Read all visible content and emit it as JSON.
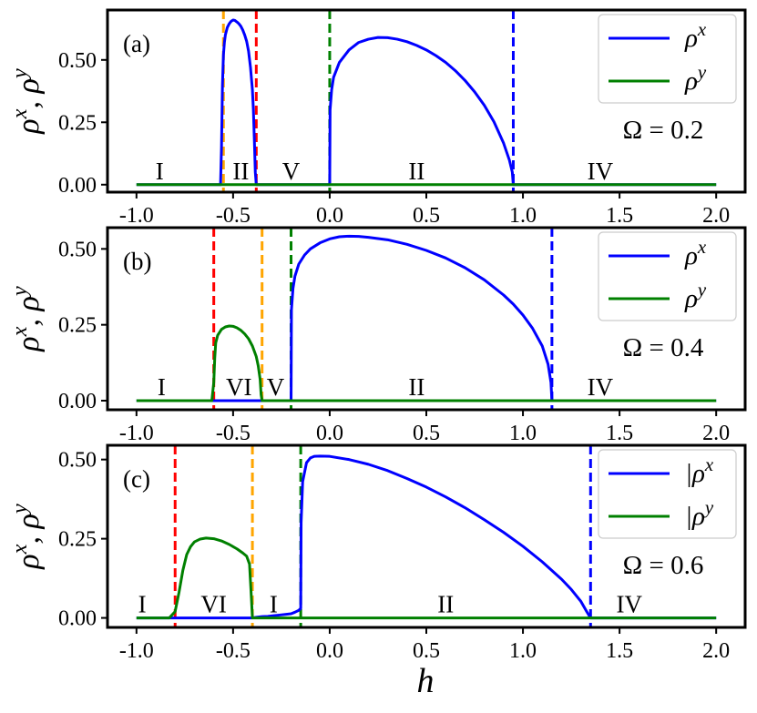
{
  "figure": {
    "xlabel": "h",
    "xticks": [
      -1.0,
      -0.5,
      0.0,
      0.5,
      1.0,
      1.5,
      2.0
    ],
    "xtick_labels": [
      "-1.0",
      "-0.5",
      "0.0",
      "0.5",
      "1.0",
      "1.5",
      "2.0"
    ],
    "xlim": [
      -1.15,
      2.15
    ],
    "colors": {
      "rho_x": "#0000ff",
      "rho_y": "#008000",
      "red": "#ff0000",
      "orange": "#ffa500",
      "green": "#008000",
      "blue": "#0000ff"
    }
  },
  "chart_data": [
    {
      "type": "line",
      "panel_label": "(a)",
      "ylabel": "ρ^x, ρ^y",
      "omega_label": "Ω = 0.2",
      "ylim": [
        -0.03,
        0.7
      ],
      "yticks": [
        0.0,
        0.25,
        0.5
      ],
      "ytick_labels": [
        "0.00",
        "0.25",
        "0.50"
      ],
      "legend_position": "top-right",
      "legend": [
        "ρ^x",
        "ρ^y"
      ],
      "vlines": [
        {
          "x": -0.55,
          "color": "orange"
        },
        {
          "x": -0.38,
          "color": "red"
        },
        {
          "x": 0.0,
          "color": "green"
        },
        {
          "x": 0.95,
          "color": "blue"
        }
      ],
      "phase_labels": [
        {
          "text": "I",
          "x": -0.88
        },
        {
          "text": "II",
          "x": -0.46
        },
        {
          "text": "V",
          "x": -0.2
        },
        {
          "text": "II",
          "x": 0.45
        },
        {
          "text": "IV",
          "x": 1.4
        }
      ],
      "series": [
        {
          "name": "ρ^x",
          "color": "rho_x",
          "x": [
            -1.0,
            -0.565,
            -0.56,
            -0.555,
            -0.55,
            -0.545,
            -0.54,
            -0.53,
            -0.52,
            -0.51,
            -0.5,
            -0.49,
            -0.48,
            -0.47,
            -0.46,
            -0.45,
            -0.44,
            -0.43,
            -0.42,
            -0.41,
            -0.4,
            -0.395,
            -0.39,
            -0.385,
            -0.38,
            0.0,
            0.002,
            0.01,
            0.02,
            0.05,
            0.1,
            0.15,
            0.2,
            0.25,
            0.3,
            0.35,
            0.4,
            0.45,
            0.5,
            0.55,
            0.6,
            0.65,
            0.7,
            0.75,
            0.8,
            0.85,
            0.9,
            0.93,
            0.945,
            0.95,
            2.0
          ],
          "y": [
            0.0,
            0.0,
            0.15,
            0.4,
            0.52,
            0.57,
            0.6,
            0.63,
            0.645,
            0.655,
            0.66,
            0.658,
            0.652,
            0.645,
            0.635,
            0.62,
            0.6,
            0.575,
            0.535,
            0.47,
            0.38,
            0.3,
            0.18,
            0.05,
            0.0,
            0.0,
            0.3,
            0.38,
            0.43,
            0.49,
            0.54,
            0.57,
            0.583,
            0.59,
            0.589,
            0.583,
            0.573,
            0.558,
            0.54,
            0.517,
            0.49,
            0.457,
            0.418,
            0.372,
            0.318,
            0.252,
            0.166,
            0.098,
            0.05,
            0.0,
            0.0
          ]
        },
        {
          "name": "ρ^y",
          "color": "rho_y",
          "x": [
            -1.0,
            2.0
          ],
          "y": [
            0.0,
            0.0
          ]
        }
      ]
    },
    {
      "type": "line",
      "panel_label": "(b)",
      "ylabel": "ρ^x, ρ^y",
      "omega_label": "Ω = 0.4",
      "ylim": [
        -0.03,
        0.57
      ],
      "yticks": [
        0.0,
        0.25,
        0.5
      ],
      "ytick_labels": [
        "0.00",
        "0.25",
        "0.50"
      ],
      "legend_position": "top-right",
      "legend": [
        "ρ^x",
        "ρ^y"
      ],
      "vlines": [
        {
          "x": -0.6,
          "color": "red"
        },
        {
          "x": -0.35,
          "color": "orange"
        },
        {
          "x": -0.2,
          "color": "green"
        },
        {
          "x": 1.15,
          "color": "blue"
        }
      ],
      "phase_labels": [
        {
          "text": "I",
          "x": -0.87
        },
        {
          "text": "VI",
          "x": -0.47
        },
        {
          "text": "V",
          "x": -0.28
        },
        {
          "text": "II",
          "x": 0.45
        },
        {
          "text": "IV",
          "x": 1.4
        }
      ],
      "series": [
        {
          "name": "ρ^x",
          "color": "rho_x",
          "x": [
            -1.0,
            -0.2,
            -0.198,
            -0.19,
            -0.18,
            -0.16,
            -0.13,
            -0.1,
            -0.05,
            0.0,
            0.05,
            0.1,
            0.15,
            0.2,
            0.3,
            0.4,
            0.5,
            0.6,
            0.7,
            0.8,
            0.9,
            0.95,
            1.0,
            1.05,
            1.1,
            1.13,
            1.145,
            1.15,
            2.0
          ],
          "y": [
            0.0,
            0.0,
            0.3,
            0.37,
            0.41,
            0.45,
            0.48,
            0.5,
            0.52,
            0.533,
            0.54,
            0.542,
            0.541,
            0.538,
            0.53,
            0.515,
            0.495,
            0.47,
            0.438,
            0.398,
            0.348,
            0.318,
            0.282,
            0.238,
            0.18,
            0.12,
            0.06,
            0.0,
            0.0
          ]
        },
        {
          "name": "ρ^y",
          "color": "rho_y",
          "x": [
            -1.0,
            -0.61,
            -0.6,
            -0.595,
            -0.59,
            -0.58,
            -0.56,
            -0.54,
            -0.52,
            -0.5,
            -0.48,
            -0.46,
            -0.44,
            -0.42,
            -0.4,
            -0.38,
            -0.37,
            -0.36,
            -0.355,
            -0.35,
            2.0
          ],
          "y": [
            0.0,
            0.0,
            0.06,
            0.14,
            0.19,
            0.215,
            0.235,
            0.243,
            0.246,
            0.245,
            0.24,
            0.232,
            0.22,
            0.204,
            0.18,
            0.145,
            0.115,
            0.07,
            0.02,
            0.0,
            0.0
          ]
        }
      ]
    },
    {
      "type": "line",
      "panel_label": "(c)",
      "ylabel": "ρ^x, ρ^y",
      "omega_label": "Ω = 0.6",
      "ylim": [
        -0.03,
        0.545
      ],
      "yticks": [
        0.0,
        0.25,
        0.5
      ],
      "ytick_labels": [
        "0.00",
        "0.25",
        "0.50"
      ],
      "legend_position": "top-right",
      "legend": [
        "|ρ^x",
        "|ρ^y"
      ],
      "vlines": [
        {
          "x": -0.8,
          "color": "red"
        },
        {
          "x": -0.4,
          "color": "orange"
        },
        {
          "x": -0.15,
          "color": "green"
        },
        {
          "x": 1.35,
          "color": "blue"
        }
      ],
      "phase_labels": [
        {
          "text": "I",
          "x": -0.97
        },
        {
          "text": "VI",
          "x": -0.6
        },
        {
          "text": "I",
          "x": -0.29
        },
        {
          "text": "II",
          "x": 0.6
        },
        {
          "text": "IV",
          "x": 1.55
        }
      ],
      "series": [
        {
          "name": "|ρ^x",
          "color": "rho_x",
          "x": [
            -1.0,
            -0.4,
            -0.38,
            -0.35,
            -0.32,
            -0.29,
            -0.26,
            -0.23,
            -0.2,
            -0.18,
            -0.16,
            -0.15,
            -0.148,
            -0.14,
            -0.12,
            -0.1,
            -0.08,
            -0.05,
            0.0,
            0.1,
            0.2,
            0.3,
            0.4,
            0.5,
            0.6,
            0.7,
            0.8,
            0.9,
            1.0,
            1.1,
            1.2,
            1.25,
            1.3,
            1.33,
            1.35,
            2.0
          ],
          "y": [
            0.0,
            0.0,
            0.002,
            0.004,
            0.005,
            0.007,
            0.009,
            0.011,
            0.013,
            0.018,
            0.024,
            0.03,
            0.3,
            0.43,
            0.49,
            0.505,
            0.51,
            0.511,
            0.51,
            0.5,
            0.485,
            0.465,
            0.44,
            0.413,
            0.382,
            0.348,
            0.31,
            0.27,
            0.226,
            0.177,
            0.122,
            0.09,
            0.052,
            0.02,
            0.0,
            0.0
          ]
        },
        {
          "name": "|ρ^y",
          "color": "rho_y",
          "x": [
            -1.0,
            -0.83,
            -0.8,
            -0.78,
            -0.76,
            -0.74,
            -0.72,
            -0.7,
            -0.67,
            -0.64,
            -0.6,
            -0.56,
            -0.52,
            -0.48,
            -0.45,
            -0.43,
            -0.415,
            -0.405,
            -0.4,
            2.0
          ],
          "y": [
            0.0,
            0.0,
            0.02,
            0.08,
            0.15,
            0.2,
            0.225,
            0.24,
            0.249,
            0.252,
            0.25,
            0.243,
            0.232,
            0.218,
            0.205,
            0.195,
            0.17,
            0.06,
            0.0,
            0.0
          ]
        }
      ]
    }
  ]
}
